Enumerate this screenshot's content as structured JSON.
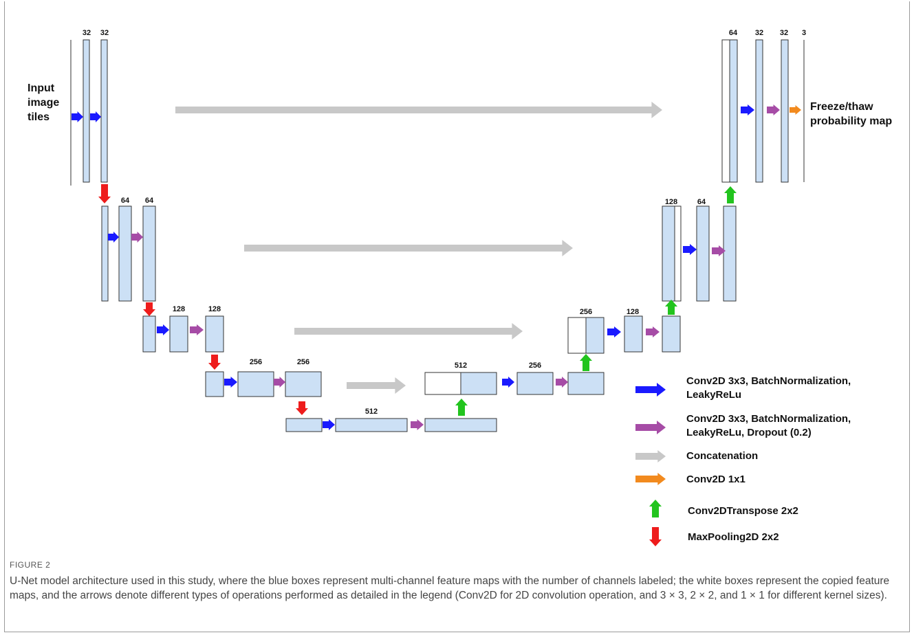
{
  "figure": {
    "label": "FIGURE 2",
    "caption": "U-Net model architecture used in this study, where the blue boxes represent multi-channel feature maps with the number of channels labeled; the white boxes represent the copied feature maps, and the arrows denote different types of operations performed as detailed in the legend (Conv2D for 2D convolution operation, and 3 × 3, 2 × 2, and 1 × 1 for different kernel sizes)."
  },
  "diagram": {
    "input_label": [
      "Input",
      "image",
      "tiles"
    ],
    "output_label": [
      "Freeze/thaw",
      "probability map"
    ],
    "channel_labels": {
      "enc1_a": "32",
      "enc1_b": "32",
      "enc2_a": "64",
      "enc2_b": "64",
      "enc3_a": "128",
      "enc3_b": "128",
      "enc4_a": "256",
      "enc4_b": "256",
      "bottleneck": "512",
      "up4_concat": "512",
      "dec4": "256",
      "up3_concat": "256",
      "dec3": "128",
      "up2_concat": "128",
      "dec2": "64",
      "up1_concat": "64",
      "dec1_a": "32",
      "dec1_b": "32",
      "out": "3"
    }
  },
  "legend": {
    "items": [
      {
        "color": "#1a1aff",
        "lines": [
          "Conv2D 3x3, BatchNormalization,",
          "LeakyReLu"
        ]
      },
      {
        "color": "#a64ca6",
        "lines": [
          "Conv2D 3x3, BatchNormalization,",
          "LeakyReLu, Dropout (0.2)"
        ]
      },
      {
        "color": "#c8c8c8",
        "lines": [
          "Concatenation"
        ]
      },
      {
        "color": "#f28a1e",
        "lines": [
          "Conv2D 1x1"
        ]
      },
      {
        "color": "#22c41e",
        "lines": [
          "Conv2DTranspose 2x2"
        ]
      },
      {
        "color": "#ee1c1c",
        "lines": [
          "MaxPooling2D 2x2"
        ]
      }
    ]
  }
}
